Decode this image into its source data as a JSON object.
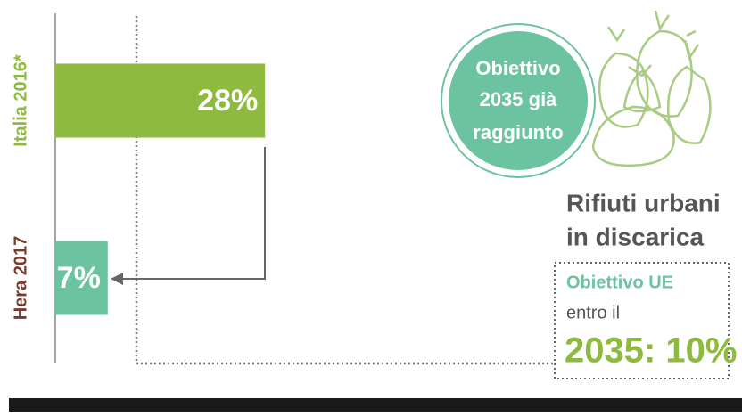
{
  "chart_data": {
    "type": "bar",
    "orientation": "horizontal",
    "categories": [
      "Italia 2016*",
      "Hera 2017"
    ],
    "category_colors": [
      "#8dba3f",
      "#7a3b2e"
    ],
    "values": [
      28,
      7
    ],
    "value_labels": [
      "28%",
      "7%"
    ],
    "colors": [
      "#8dba3f",
      "#6cc3a0"
    ],
    "xlim": [
      0,
      30
    ],
    "circle_text": [
      "Obiettivo",
      "2035 già",
      "raggiunto"
    ],
    "title": [
      "Rifiuti urbani",
      "in discarica"
    ],
    "target_box": {
      "label": "Obiettivo UE",
      "text": "entro il",
      "target": "2035: 10%"
    }
  }
}
